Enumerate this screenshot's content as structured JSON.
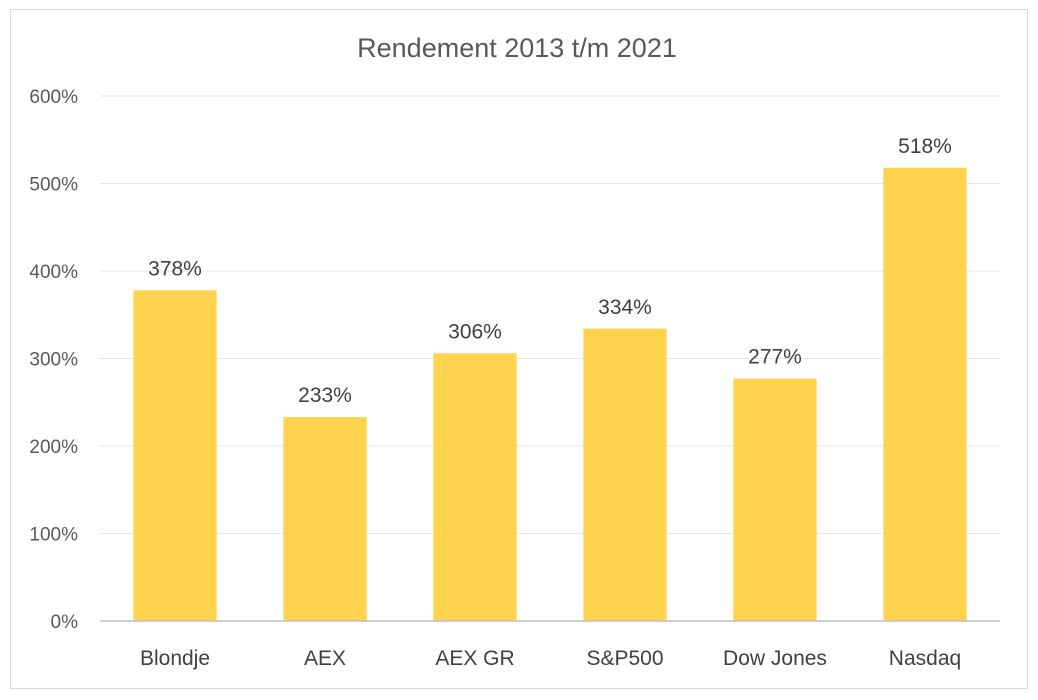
{
  "chart_data": {
    "type": "bar",
    "title": "Rendement 2013 t/m 2021",
    "xlabel": "",
    "ylabel": "",
    "categories": [
      "Blondje",
      "AEX",
      "AEX GR",
      "S&P500",
      "Dow Jones",
      "Nasdaq"
    ],
    "values": [
      378,
      233,
      306,
      334,
      277,
      518
    ],
    "value_labels": [
      "378%",
      "233%",
      "306%",
      "334%",
      "277%",
      "518%"
    ],
    "ylim": [
      0,
      600
    ],
    "yticks": [
      0,
      100,
      200,
      300,
      400,
      500,
      600
    ],
    "ytick_labels": [
      "0%",
      "100%",
      "200%",
      "300%",
      "400%",
      "500%",
      "600%"
    ],
    "grid": true,
    "legend": "none",
    "bar_color": "#FFD34E",
    "grid_color": "#e6e6e6",
    "axis_color": "#bfbfbf"
  }
}
